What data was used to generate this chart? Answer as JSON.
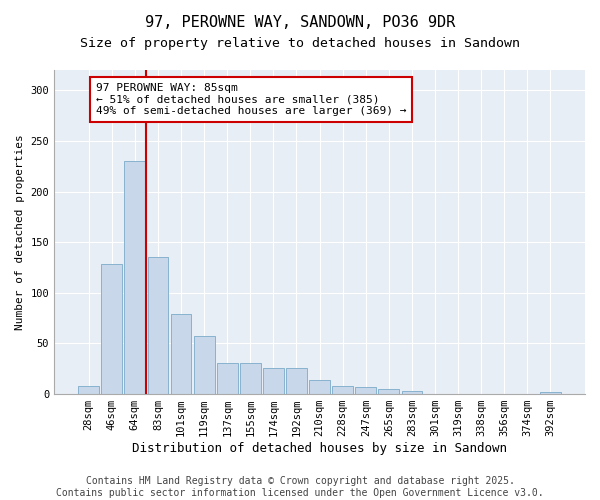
{
  "title": "97, PEROWNE WAY, SANDOWN, PO36 9DR",
  "subtitle": "Size of property relative to detached houses in Sandown",
  "xlabel": "Distribution of detached houses by size in Sandown",
  "ylabel": "Number of detached properties",
  "bar_color": "#c8d8ea",
  "bar_edge_color": "#7aaac8",
  "vline_color": "#cc0000",
  "vline_x_index": 3,
  "categories": [
    "28sqm",
    "46sqm",
    "64sqm",
    "83sqm",
    "101sqm",
    "119sqm",
    "137sqm",
    "155sqm",
    "174sqm",
    "192sqm",
    "210sqm",
    "228sqm",
    "247sqm",
    "265sqm",
    "283sqm",
    "301sqm",
    "319sqm",
    "338sqm",
    "356sqm",
    "374sqm",
    "392sqm"
  ],
  "values": [
    8,
    128,
    230,
    135,
    79,
    57,
    31,
    31,
    26,
    26,
    14,
    8,
    7,
    5,
    3,
    0,
    0,
    0,
    0,
    0,
    2
  ],
  "ylim": [
    0,
    320
  ],
  "yticks": [
    0,
    50,
    100,
    150,
    200,
    250,
    300
  ],
  "annotation_text": "97 PEROWNE WAY: 85sqm\n← 51% of detached houses are smaller (385)\n49% of semi-detached houses are larger (369) →",
  "bg_color": "#e8eef5",
  "grid_color": "#ffffff",
  "footer_text": "Contains HM Land Registry data © Crown copyright and database right 2025.\nContains public sector information licensed under the Open Government Licence v3.0.",
  "title_fontsize": 11,
  "subtitle_fontsize": 9.5,
  "xlabel_fontsize": 9,
  "ylabel_fontsize": 8,
  "tick_fontsize": 7.5,
  "annotation_fontsize": 8,
  "footer_fontsize": 7
}
